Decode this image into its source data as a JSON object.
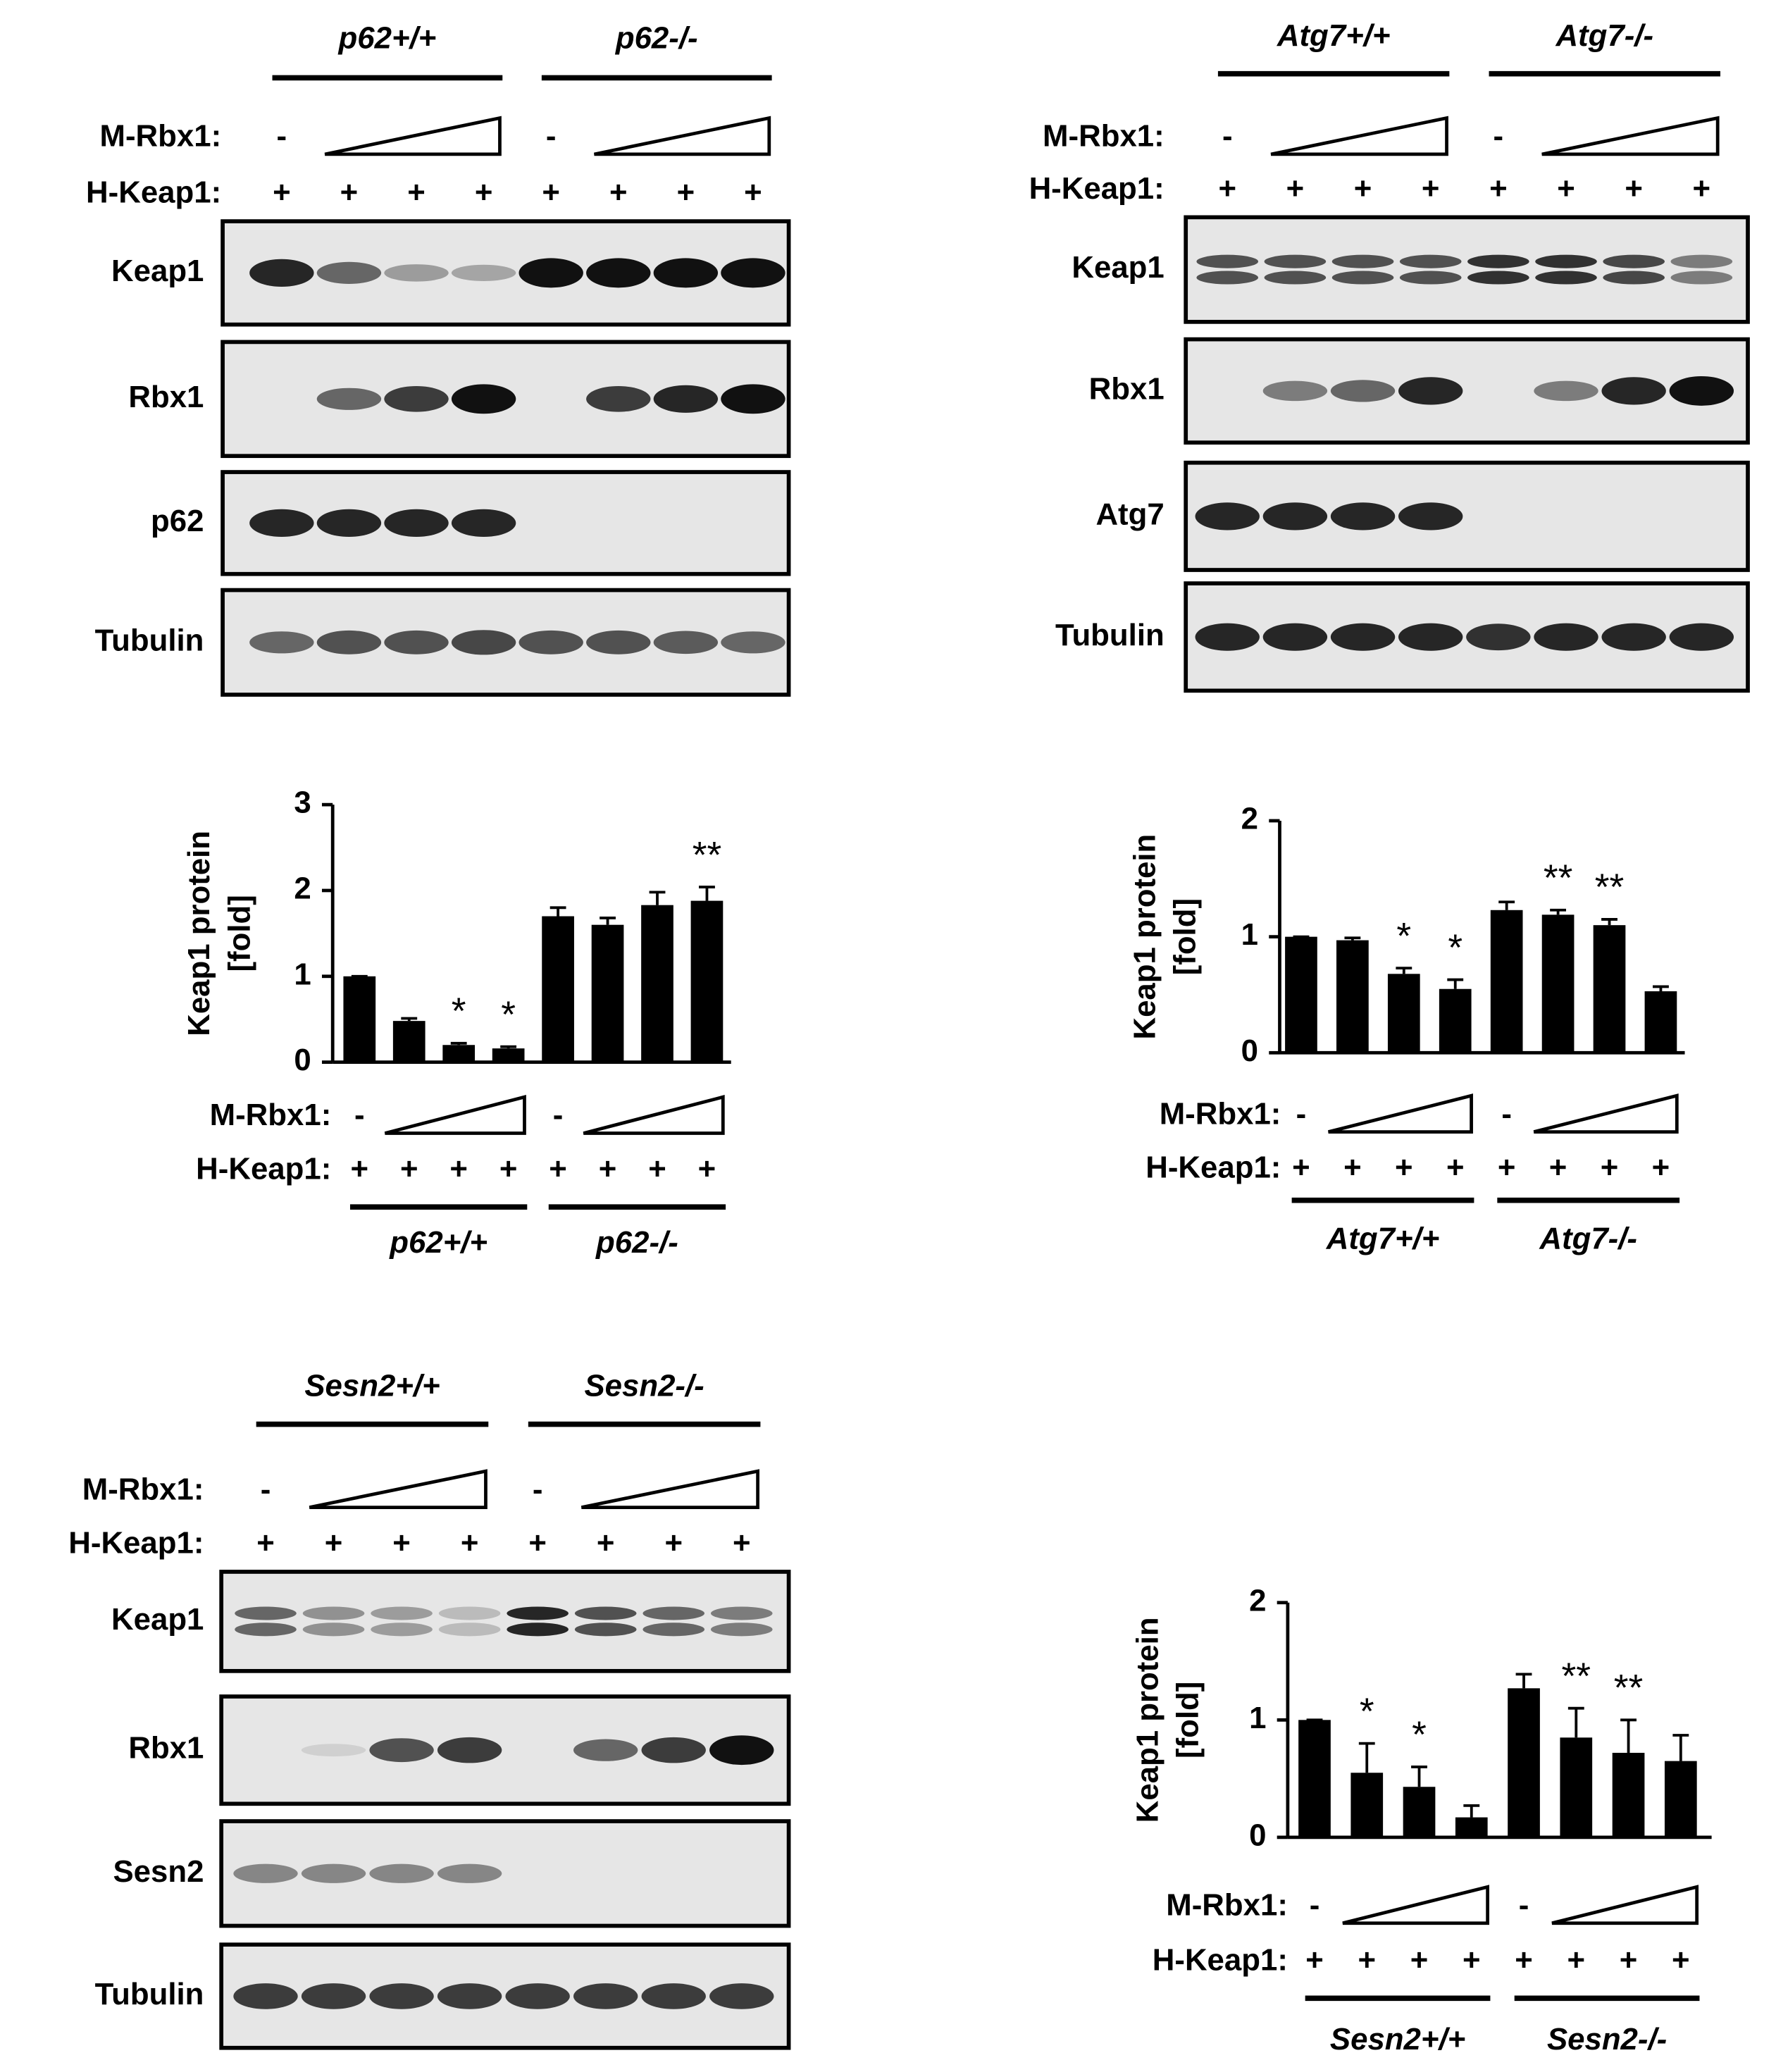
{
  "blots": [
    {
      "groups": [
        "p62+/+",
        "p62-/-"
      ],
      "row_labels": [
        "M-Rbx1:",
        "H-Keap1:"
      ],
      "minus": "-",
      "plus": "+",
      "bands": [
        "Keap1",
        "Rbx1",
        "p62",
        "Tubulin"
      ]
    },
    {
      "groups": [
        "Atg7+/+",
        "Atg7-/-"
      ],
      "row_labels": [
        "M-Rbx1:",
        "H-Keap1:"
      ],
      "minus": "-",
      "plus": "+",
      "bands": [
        "Keap1",
        "Rbx1",
        "Atg7",
        "Tubulin"
      ]
    },
    {
      "groups": [
        "Sesn2+/+",
        "Sesn2-/-"
      ],
      "row_labels": [
        "M-Rbx1:",
        "H-Keap1:"
      ],
      "minus": "-",
      "plus": "+",
      "bands": [
        "Keap1",
        "Rbx1",
        "Sesn2",
        "Tubulin"
      ]
    }
  ],
  "chart_data": [
    {
      "type": "bar",
      "ylabel": [
        "Keap1 protein",
        "[fold]"
      ],
      "color": "#000000",
      "ylim": [
        0,
        3
      ],
      "yticks": [
        0,
        1,
        2,
        3
      ],
      "values": [
        1.0,
        0.48,
        0.2,
        0.16,
        1.7,
        1.6,
        1.83,
        1.88
      ],
      "errors": [
        0,
        0.03,
        0.02,
        0.02,
        0.1,
        0.08,
        0.15,
        0.16
      ],
      "annotations": [
        null,
        null,
        "*",
        "*",
        null,
        null,
        null,
        "**"
      ],
      "row_labels": [
        "M-Rbx1:",
        "H-Keap1:"
      ],
      "minus": "-",
      "plus": "+",
      "groups": [
        "p62+/+",
        "p62-/-"
      ]
    },
    {
      "type": "bar",
      "ylabel": [
        "Keap1 protein",
        "[fold]"
      ],
      "color": "#000000",
      "ylim": [
        0,
        2
      ],
      "yticks": [
        0,
        1,
        2
      ],
      "values": [
        1.0,
        0.97,
        0.68,
        0.55,
        1.23,
        1.19,
        1.1,
        0.53
      ],
      "errors": [
        0,
        0.02,
        0.05,
        0.08,
        0.07,
        0.04,
        0.05,
        0.04
      ],
      "annotations": [
        null,
        null,
        "*",
        "*",
        null,
        "**",
        "**",
        null
      ],
      "row_labels": [
        "M-Rbx1:",
        "H-Keap1:"
      ],
      "minus": "-",
      "plus": "+",
      "groups": [
        "Atg7+/+",
        "Atg7-/-"
      ]
    },
    {
      "type": "bar",
      "ylabel": [
        "Keap1 protein",
        "[fold]"
      ],
      "color": "#000000",
      "ylim": [
        0,
        2
      ],
      "yticks": [
        0,
        1,
        2
      ],
      "values": [
        1.0,
        0.55,
        0.43,
        0.17,
        1.27,
        0.85,
        0.72,
        0.65
      ],
      "errors": [
        0,
        0.25,
        0.17,
        0.1,
        0.12,
        0.25,
        0.28,
        0.22
      ],
      "annotations": [
        null,
        "*",
        "*",
        null,
        null,
        "**",
        "**",
        null
      ],
      "row_labels": [
        "M-Rbx1:",
        "H-Keap1:"
      ],
      "minus": "-",
      "plus": "+",
      "groups": [
        "Sesn2+/+",
        "Sesn2-/-"
      ]
    }
  ]
}
